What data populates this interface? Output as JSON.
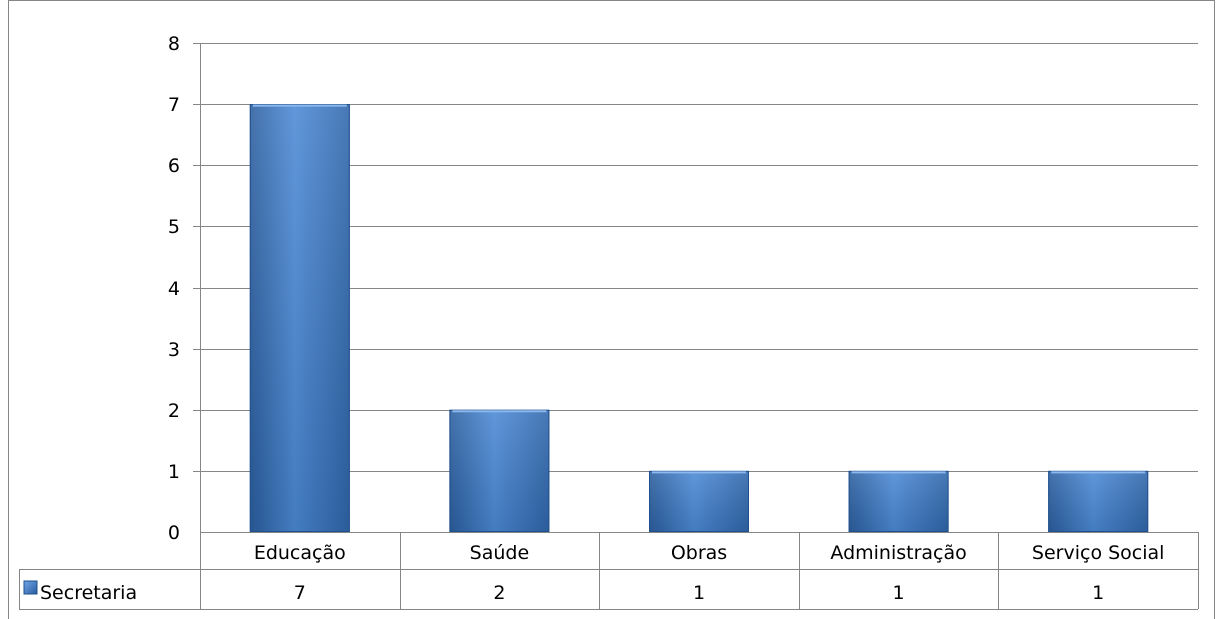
{
  "chart_data": {
    "type": "bar",
    "categories": [
      "Educação",
      "Saúde",
      "Obras",
      "Administração",
      "Serviço Social"
    ],
    "series": [
      {
        "name": "Secretaria",
        "values": [
          7,
          2,
          1,
          1,
          1
        ],
        "color": "#3A75BE"
      }
    ],
    "ylim": [
      0,
      8
    ],
    "yticks": [
      "0",
      "1",
      "2",
      "3",
      "4",
      "5",
      "6",
      "7",
      "8"
    ],
    "grid": true,
    "legend": "data-table",
    "data_table": true
  },
  "colors": {
    "bar_top": "#5B97E0",
    "bar_mid": "#3A78C6",
    "bar_dark": "#2A5C9E",
    "grid": "#868686"
  }
}
